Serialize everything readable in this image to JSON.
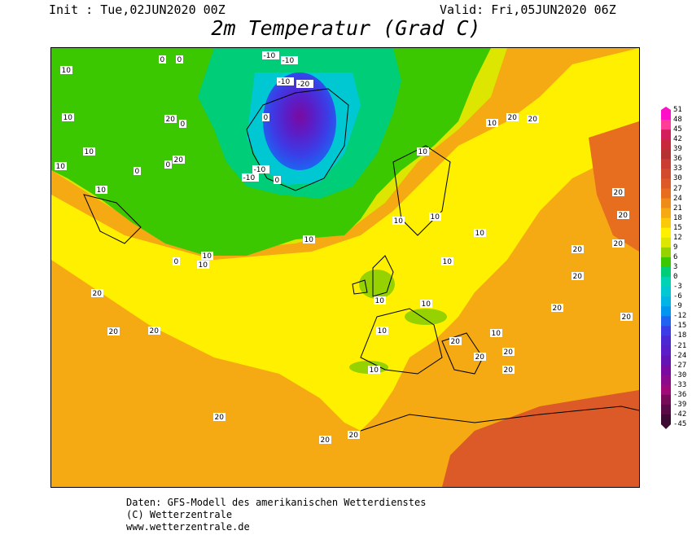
{
  "header": {
    "init": "Init : Tue,02JUN2020 00Z",
    "valid": "Valid: Fri,05JUN2020 06Z",
    "title": "2m Temperatur (Grad C)"
  },
  "legend": {
    "ticks": [
      "51",
      "48",
      "45",
      "42",
      "39",
      "36",
      "33",
      "30",
      "27",
      "24",
      "21",
      "18",
      "15",
      "12",
      "9",
      "6",
      "3",
      "0",
      "-3",
      "-6",
      "-9",
      "-12",
      "-15",
      "-18",
      "-21",
      "-24",
      "-27",
      "-30",
      "-33",
      "-36",
      "-39",
      "-42",
      "-45"
    ],
    "colors": [
      "#ff10c8",
      "#ff3c96",
      "#d21e5a",
      "#c8283c",
      "#b43232",
      "#c83c32",
      "#d24b2d",
      "#dc5a28",
      "#e66e1e",
      "#ee8c1a",
      "#f5aa14",
      "#faca0a",
      "#fff000",
      "#dce600",
      "#96d200",
      "#3cc800",
      "#00cd78",
      "#00d2b4",
      "#00c8d2",
      "#00b4e6",
      "#0096f0",
      "#1e64f0",
      "#3c3ce6",
      "#4b28d2",
      "#5a1ec8",
      "#6414b4",
      "#7a0aa0",
      "#8c0a8c",
      "#a00a78",
      "#780a5a",
      "#5a0a46",
      "#3c0a32"
    ]
  },
  "map_labels": [
    {
      "text": "10"
    },
    {
      "text": "10"
    },
    {
      "text": "10"
    },
    {
      "text": "0"
    },
    {
      "text": "0"
    },
    {
      "text": "-10"
    },
    {
      "text": "-10"
    },
    {
      "text": "-20"
    },
    {
      "text": "-10"
    },
    {
      "text": "0"
    },
    {
      "text": "0"
    },
    {
      "text": "10"
    },
    {
      "text": "10"
    },
    {
      "text": "0"
    },
    {
      "text": "0"
    },
    {
      "text": "-10"
    },
    {
      "text": "-10"
    },
    {
      "text": "0"
    },
    {
      "text": "10"
    },
    {
      "text": "10"
    },
    {
      "text": "0"
    },
    {
      "text": "20"
    },
    {
      "text": "20"
    },
    {
      "text": "10"
    },
    {
      "text": "10"
    },
    {
      "text": "10"
    },
    {
      "text": "10"
    },
    {
      "text": "20"
    },
    {
      "text": "20"
    },
    {
      "text": "10"
    },
    {
      "text": "10"
    },
    {
      "text": "20"
    },
    {
      "text": "20"
    },
    {
      "text": "20"
    },
    {
      "text": "20"
    },
    {
      "text": "10"
    },
    {
      "text": "10"
    },
    {
      "text": "20"
    },
    {
      "text": "20"
    },
    {
      "text": "20"
    },
    {
      "text": "20"
    },
    {
      "text": "10"
    },
    {
      "text": "20"
    },
    {
      "text": "20"
    },
    {
      "text": "20"
    },
    {
      "text": "20"
    },
    {
      "text": "20"
    },
    {
      "text": "20"
    },
    {
      "text": "20"
    },
    {
      "text": "10"
    },
    {
      "text": "20"
    },
    {
      "text": "20"
    },
    {
      "text": "10"
    },
    {
      "text": "10"
    }
  ],
  "credits": {
    "line1": "Daten: GFS-Modell des amerikanischen Wetterdienstes",
    "line2": "(C) Wetterzentrale",
    "line3": "www.wetterzentrale.de"
  }
}
